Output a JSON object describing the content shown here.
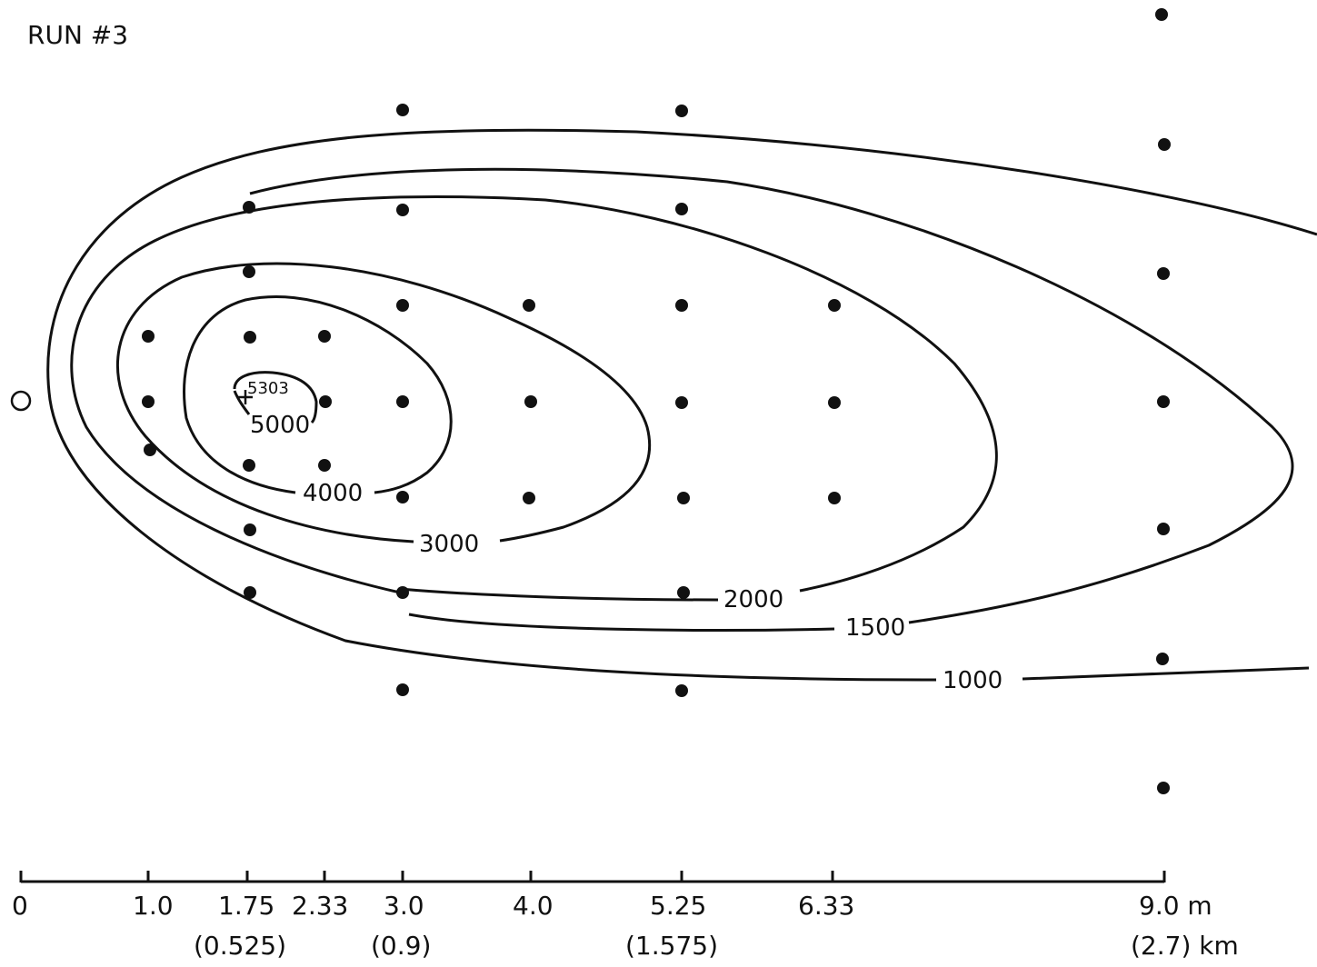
{
  "title": "RUN #3",
  "axis": {
    "ticks": [
      {
        "label": "0",
        "sub": ""
      },
      {
        "label": "1.0",
        "sub": ""
      },
      {
        "label": "1.75",
        "sub": "(0.525)"
      },
      {
        "label": "2.33",
        "sub": ""
      },
      {
        "label": "3.0",
        "sub": "(0.9)"
      },
      {
        "label": "4.0",
        "sub": ""
      },
      {
        "label": "5.25",
        "sub": "(1.575)"
      },
      {
        "label": "6.33",
        "sub": ""
      },
      {
        "label": "9.0 m",
        "sub": "(2.7) km"
      }
    ]
  },
  "contours": [
    {
      "value": "5303"
    },
    {
      "value": "5000"
    },
    {
      "value": "4000"
    },
    {
      "value": "3000"
    },
    {
      "value": "2000"
    },
    {
      "value": "1500"
    },
    {
      "value": "1000"
    }
  ],
  "source_marker": "open-circle",
  "peak_marker": "plus"
}
